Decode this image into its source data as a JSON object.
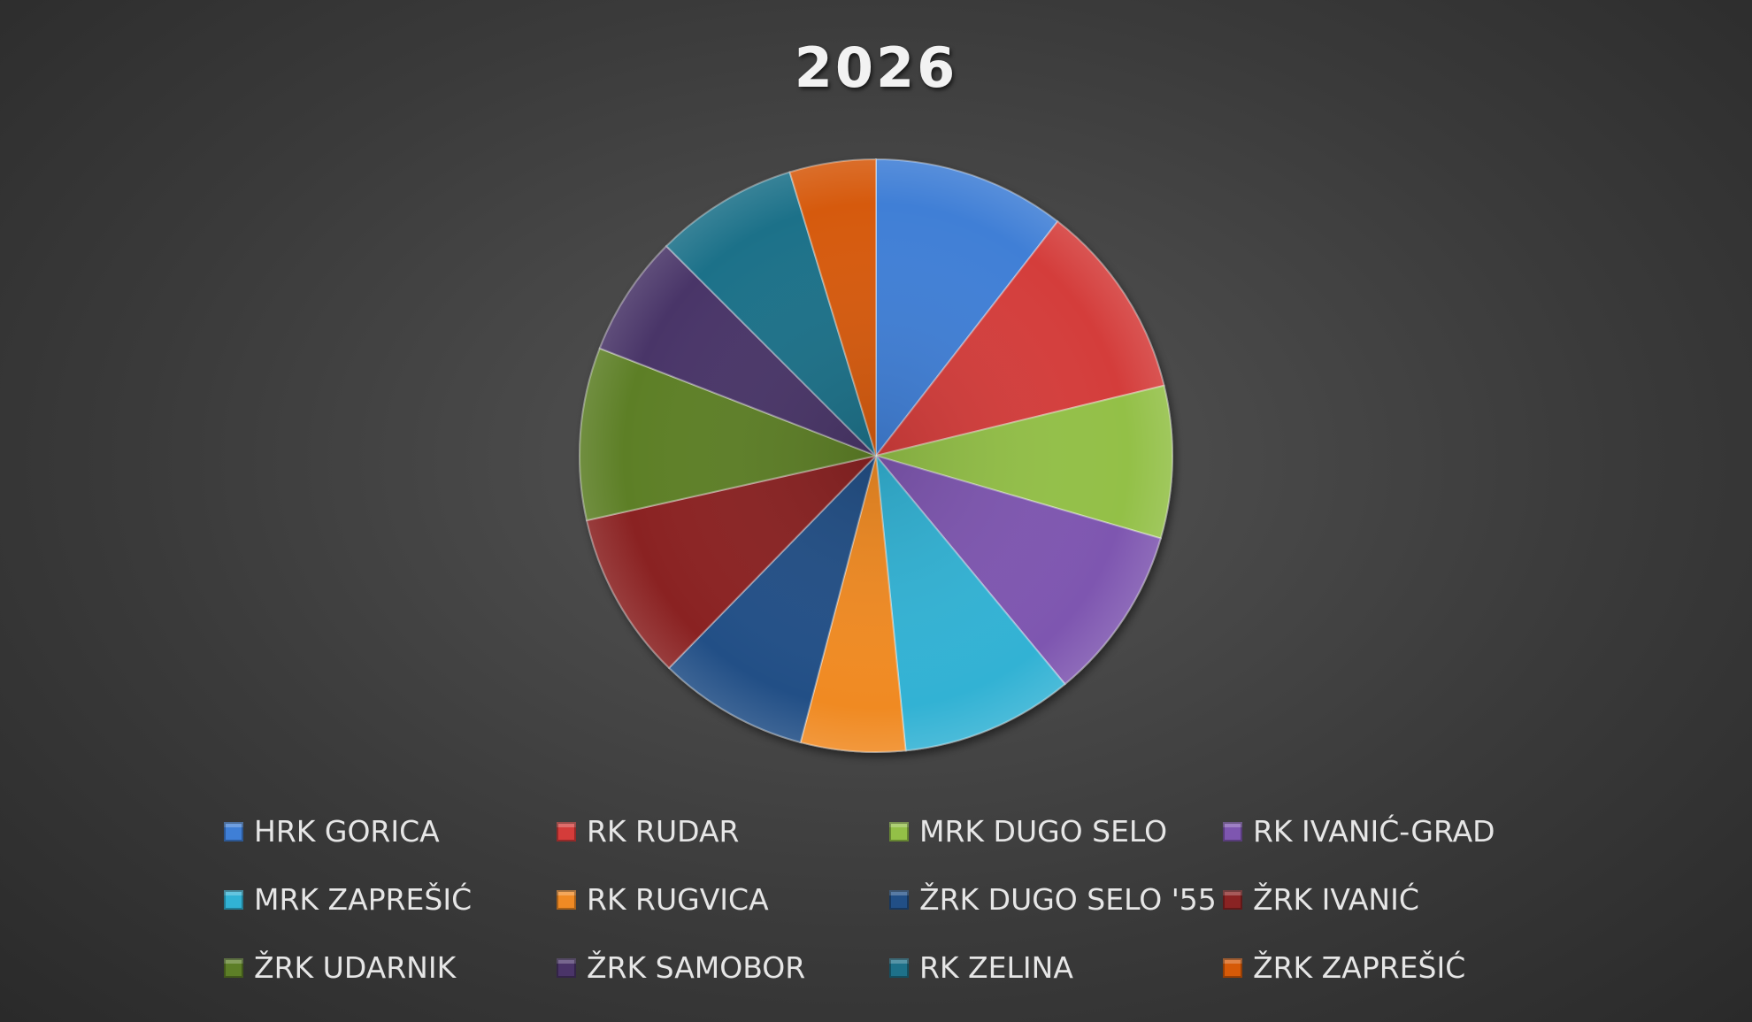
{
  "chart_data": {
    "type": "pie",
    "title": "2026",
    "start_angle": "top, clockwise",
    "legend_position": "bottom",
    "slices": [
      {
        "label": "HRK GORICA",
        "value": 10.5,
        "color": "#3f7fd6"
      },
      {
        "label": "RK RUDAR",
        "value": 10.7,
        "color": "#d43c3a"
      },
      {
        "label": "MRK DUGO SELO",
        "value": 8.3,
        "color": "#93c047"
      },
      {
        "label": "RK IVANIĆ-GRAD",
        "value": 9.5,
        "color": "#7e56b0"
      },
      {
        "label": "MRK ZAPREŠIĆ",
        "value": 9.4,
        "color": "#31b2d4"
      },
      {
        "label": "RK RUGVICA",
        "value": 5.7,
        "color": "#f08a24"
      },
      {
        "label": "ŽRK DUGO SELO '55",
        "value": 8.2,
        "color": "#214f86"
      },
      {
        "label": "ŽRK IVANIĆ",
        "value": 9.2,
        "color": "#8a2323"
      },
      {
        "label": "ŽRK UDARNIK",
        "value": 9.4,
        "color": "#5d7f27"
      },
      {
        "label": "ŽRK SAMOBOR",
        "value": 6.6,
        "color": "#4a3468"
      },
      {
        "label": "RK ZELINA",
        "value": 7.8,
        "color": "#1e7189"
      },
      {
        "label": "ŽRK ZAPREŠIĆ",
        "value": 4.7,
        "color": "#d65a08"
      }
    ]
  }
}
